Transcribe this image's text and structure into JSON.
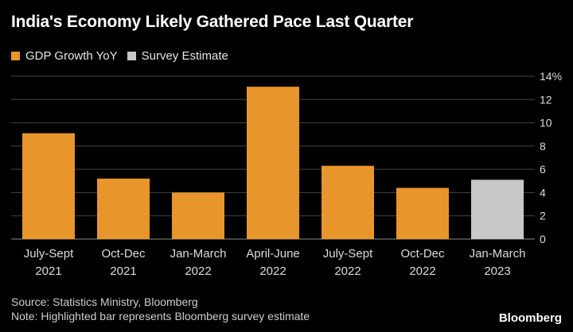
{
  "title": "India's Economy Likely Gathered Pace Last Quarter",
  "legend": [
    {
      "label": "GDP Growth YoY",
      "color": "#e8952b"
    },
    {
      "label": "Survey Estimate",
      "color": "#c8c8c8"
    }
  ],
  "chart_data": {
    "type": "bar",
    "categories": [
      [
        "July-Sept",
        "2021"
      ],
      [
        "Oct-Dec",
        "2021"
      ],
      [
        "Jan-March",
        "2022"
      ],
      [
        "April-June",
        "2022"
      ],
      [
        "July-Sept",
        "2022"
      ],
      [
        "Oct-Dec",
        "2022"
      ],
      [
        "Jan-March",
        "2023"
      ]
    ],
    "series": [
      {
        "name": "GDP Growth YoY",
        "values": [
          9.1,
          5.2,
          4.0,
          13.1,
          6.3,
          4.4,
          null
        ],
        "color": "#e8952b"
      },
      {
        "name": "Survey Estimate",
        "values": [
          null,
          null,
          null,
          null,
          null,
          null,
          5.1
        ],
        "color": "#c8c8c8"
      }
    ],
    "y_ticks": [
      "0",
      "2",
      "4",
      "6",
      "8",
      "10",
      "12",
      "14%"
    ],
    "ylim": [
      0,
      14
    ],
    "grid": true,
    "legend_position": "top-left"
  },
  "footer": {
    "source": "Source: Statistics Ministry, Bloomberg",
    "note": "Note: Highlighted bar represents Bloomberg survey estimate"
  },
  "brand": "Bloomberg"
}
